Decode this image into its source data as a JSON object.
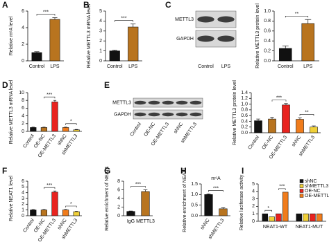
{
  "chart_data": [
    {
      "type": "bar",
      "panel": "A",
      "ylabel": "Relative m⁶A level",
      "categories": [
        "Control",
        "LPS"
      ],
      "values": [
        1,
        5
      ],
      "errors": [
        0.1,
        0.2
      ],
      "colors": [
        "#111111",
        "#b8741f"
      ],
      "ylim": [
        0,
        6
      ],
      "yticks": [
        0,
        2,
        4,
        6
      ],
      "annotations": [
        "***"
      ]
    },
    {
      "type": "bar",
      "panel": "B",
      "ylabel": "Relative METTL3 mRNA level",
      "categories": [
        "Control",
        "LPS"
      ],
      "values": [
        1,
        3.4
      ],
      "errors": [
        0.08,
        0.3
      ],
      "colors": [
        "#111111",
        "#b8741f"
      ],
      "ylim": [
        0,
        5
      ],
      "yticks": [
        0,
        1,
        2,
        3,
        4,
        5
      ],
      "annotations": [
        "***"
      ]
    },
    {
      "type": "bar",
      "panel": "C",
      "ylabel": "Relative METTL3 protein level",
      "categories": [
        "Control",
        "LPS"
      ],
      "values": [
        0.25,
        0.75
      ],
      "errors": [
        0.05,
        0.08
      ],
      "colors": [
        "#111111",
        "#b8741f"
      ],
      "ylim": [
        0,
        1
      ],
      "yticks": [
        {
          "value": 0,
          "label": "0.0"
        },
        0.2,
        0.4,
        0.6,
        0.8,
        {
          "value": 1,
          "label": "1.0"
        }
      ],
      "annotations": [
        "**"
      ],
      "blot": {
        "bands": [
          "METTL3",
          "GAPDH"
        ],
        "lanes": [
          "Control",
          "LPS"
        ]
      }
    },
    {
      "type": "bar",
      "panel": "D",
      "ylabel": "Relative METTL3 mRNA level",
      "categories": [
        "Control",
        "OE-NC",
        "OE-METTL3",
        "shNC",
        "shMETTL3"
      ],
      "values": [
        1,
        1,
        7.6,
        1,
        0.4
      ],
      "errors": [
        0.1,
        0.1,
        0.4,
        0.1,
        0.1
      ],
      "colors": [
        "#111111",
        "#b8741f",
        "#e8231f",
        "#f07c1c",
        "#f0d038"
      ],
      "ylim": [
        0,
        10
      ],
      "yticks": [
        0,
        2,
        4,
        6,
        8,
        10
      ],
      "annotations": [
        "***",
        "*"
      ]
    },
    {
      "type": "bar",
      "panel": "E",
      "ylabel": "Relative METTL3 protein level",
      "categories": [
        "Control",
        "OE-NC",
        "OE-METTL3",
        "shNC",
        "shMETTL3"
      ],
      "values": [
        0.42,
        0.48,
        0.97,
        0.47,
        0.2
      ],
      "errors": [
        0.06,
        0.06,
        0.05,
        0.05,
        0.04
      ],
      "colors": [
        "#111111",
        "#b8741f",
        "#e8231f",
        "#f07c1c",
        "#f0d038"
      ],
      "ylim": [
        0,
        1.4
      ],
      "yticks": [
        {
          "value": 0,
          "label": "0.0"
        },
        0.2,
        0.4,
        0.6,
        0.8,
        {
          "value": 1,
          "label": "1.0"
        },
        1.2,
        1.4
      ],
      "annotations": [
        "***",
        "**"
      ],
      "blot": {
        "bands": [
          "METTL3",
          "GAPDH"
        ],
        "lanes": [
          "Control",
          "OE-NC",
          "OE-METTL3",
          "shNC",
          "shMETTL3"
        ]
      }
    },
    {
      "type": "bar",
      "panel": "F",
      "ylabel": "Relative NEAT1 level",
      "categories": [
        "Control",
        "OE-NC",
        "OE-METTL3",
        "shNC",
        "shMETTL3"
      ],
      "values": [
        1,
        1,
        4.1,
        1,
        0.7
      ],
      "errors": [
        0.08,
        0.08,
        0.2,
        0.08,
        0.08
      ],
      "colors": [
        "#111111",
        "#b8741f",
        "#e8231f",
        "#f07c1c",
        "#f0d038"
      ],
      "ylim": [
        0,
        6
      ],
      "yticks": [
        0,
        1,
        2,
        3,
        4,
        5,
        6
      ],
      "annotations": [
        "***",
        "*"
      ]
    },
    {
      "type": "bar",
      "panel": "G",
      "ylabel": "Relative enrichment of NEAT1",
      "categories": [
        "IgG",
        "METTL3"
      ],
      "values": [
        1,
        5.6
      ],
      "errors": [
        0.1,
        0.4
      ],
      "colors": [
        "#111111",
        "#b8741f"
      ],
      "ylim": [
        0,
        8
      ],
      "yticks": [
        0,
        2,
        4,
        6,
        8
      ],
      "annotations": [
        "***"
      ]
    },
    {
      "type": "bar",
      "panel": "H",
      "title": "m⁶A",
      "ylabel": "Relative enrichment of NEAT1",
      "categories": [
        "shNC",
        "shMETTL3"
      ],
      "values": [
        1,
        0.33
      ],
      "errors": [
        0.03,
        0.05
      ],
      "colors": [
        "#111111",
        "#b8741f"
      ],
      "ylim": [
        0,
        1.5
      ],
      "yticks": [
        {
          "value": 0,
          "label": "0.0"
        },
        0.5,
        {
          "value": 1,
          "label": "1.0"
        },
        1.5
      ],
      "annotations": [
        "***"
      ]
    },
    {
      "type": "grouped-bar",
      "panel": "I",
      "ylabel": "Relative luciferase activity",
      "categories": [
        "NEAT1-WT",
        "NEAT1-MUT"
      ],
      "series": [
        {
          "name": "shNC",
          "color": "#111111",
          "values": [
            1,
            1
          ]
        },
        {
          "name": "shMETTL3",
          "color": "#f0d038",
          "values": [
            0.6,
            1
          ]
        },
        {
          "name": "OE-NC",
          "color": "#e8231f",
          "values": [
            1,
            1
          ]
        },
        {
          "name": "OE-METTL3",
          "color": "#f07c1c",
          "values": [
            3.9,
            1
          ]
        }
      ],
      "ylim": [
        0,
        5
      ],
      "yticks": [
        0,
        1,
        2,
        3,
        4,
        5
      ],
      "annotations": [
        "*",
        "***"
      ]
    }
  ]
}
